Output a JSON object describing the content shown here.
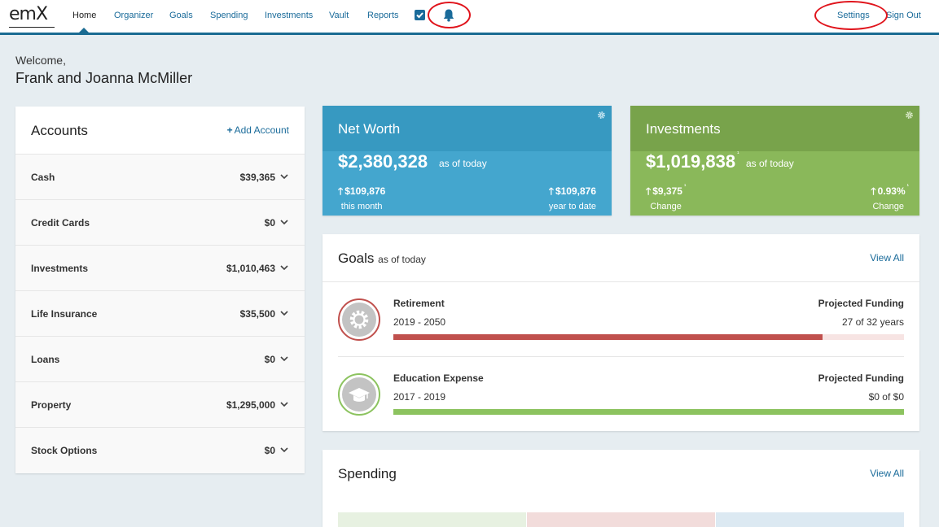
{
  "nav": {
    "logo": "emX",
    "links": [
      "Home",
      "Organizer",
      "Goals",
      "Spending",
      "Investments",
      "Vault",
      "Reports"
    ],
    "settings": "Settings",
    "sign_out": "Sign Out"
  },
  "welcome": {
    "greeting": "Welcome,",
    "name": "Frank and Joanna McMiller"
  },
  "accounts": {
    "title": "Accounts",
    "add_label": "Add Account",
    "rows": [
      {
        "label": "Cash",
        "value": "$39,365"
      },
      {
        "label": "Credit Cards",
        "value": "$0"
      },
      {
        "label": "Investments",
        "value": "$1,010,463"
      },
      {
        "label": "Life Insurance",
        "value": "$35,500"
      },
      {
        "label": "Loans",
        "value": "$0"
      },
      {
        "label": "Property",
        "value": "$1,295,000"
      },
      {
        "label": "Stock Options",
        "value": "$0"
      }
    ]
  },
  "net_worth": {
    "title": "Net Worth",
    "amount": "$2,380,328",
    "as_of": "as of today",
    "left_value": "$109,876",
    "left_label": "this month",
    "right_value": "$109,876",
    "right_label": "year to date",
    "color": "#44a6ce"
  },
  "investments": {
    "title": "Investments",
    "amount": "$1,019,838",
    "amount_marker": "¹",
    "as_of": "as of today",
    "left_value": "$9,375",
    "left_marker": "¹",
    "left_label": "Change",
    "right_value": "0.93%",
    "right_marker": "¹",
    "right_label": "Change",
    "color": "#8ab85a"
  },
  "goals": {
    "title": "Goals",
    "as_of": "as of today",
    "view_all": "View All",
    "items": [
      {
        "name": "Retirement",
        "years": "2019 - 2050",
        "projection_label": "Projected Funding",
        "status": "27 of 32 years",
        "progress": 0.84,
        "color": "#c0504d",
        "icon": "gear-icon"
      },
      {
        "name": "Education Expense",
        "years": "2017 - 2019",
        "projection_label": "Projected Funding",
        "status": "$0 of $0",
        "progress": 1.0,
        "color": "#8cc35f",
        "icon": "graduation-cap-icon"
      }
    ]
  },
  "spending": {
    "title": "Spending",
    "view_all": "View All"
  }
}
